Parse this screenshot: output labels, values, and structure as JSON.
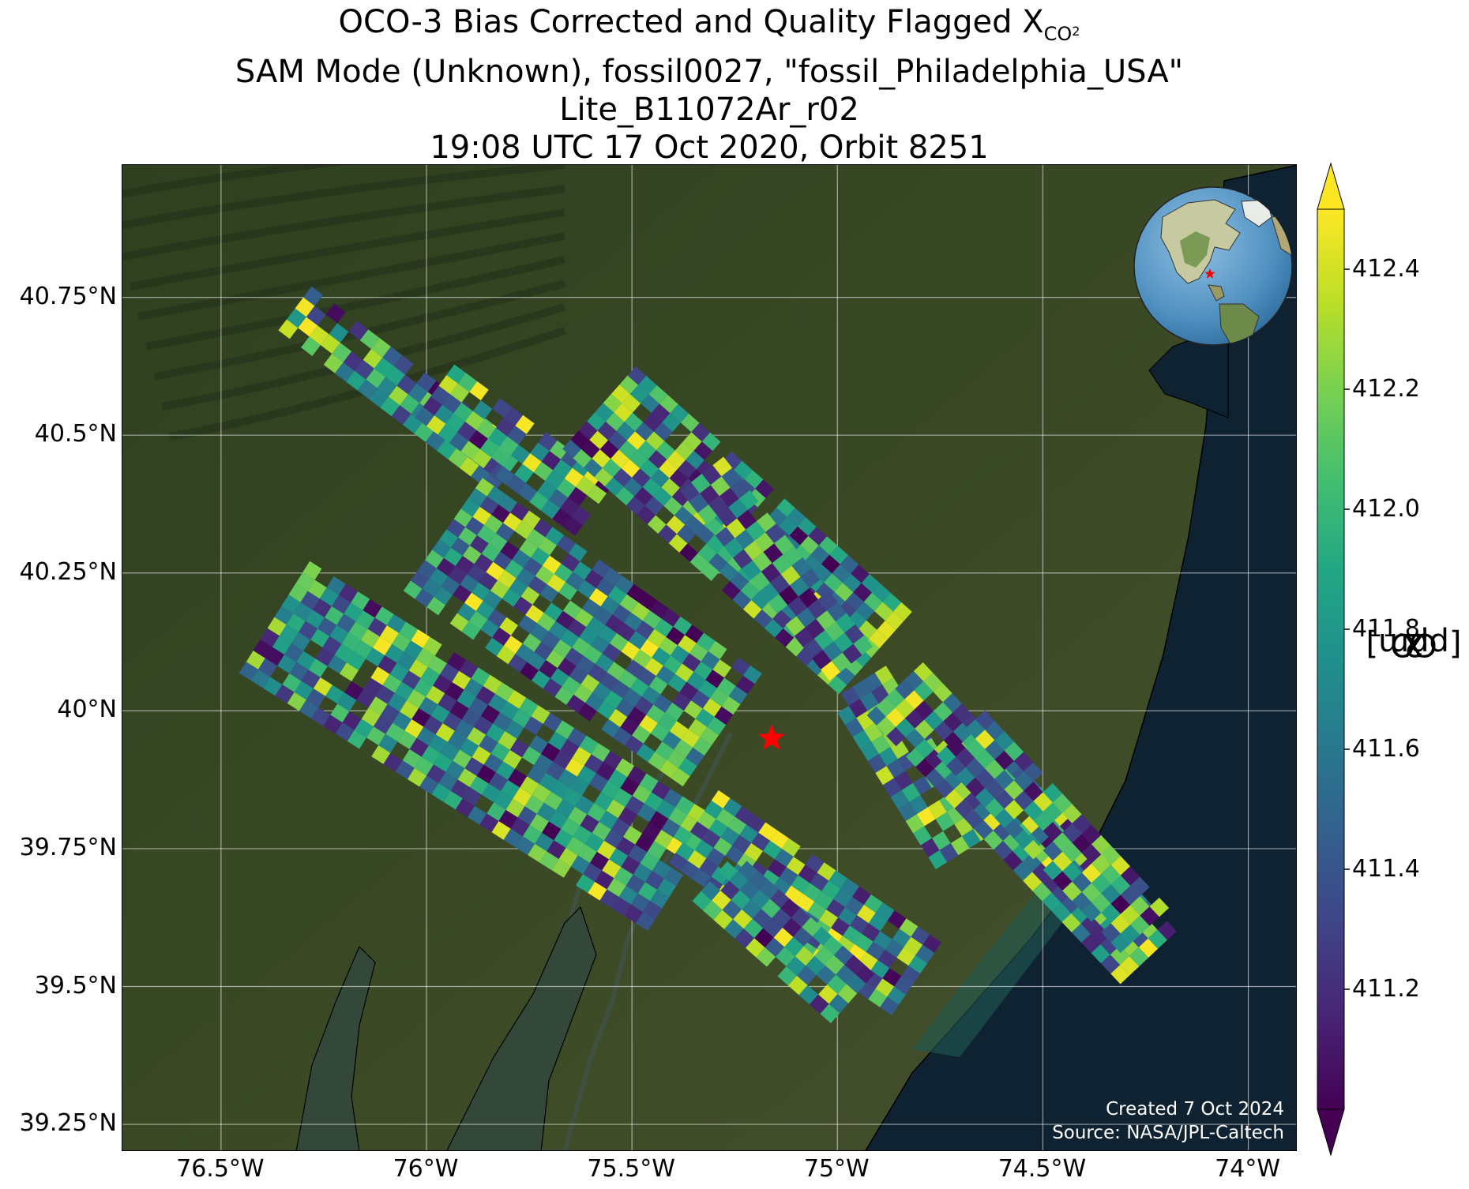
{
  "title": {
    "line1_prefix": "OCO-3 Bias Corrected and Quality Flagged X",
    "line1_sub": "CO",
    "line1_subsub": "2",
    "line2": "SAM Mode (Unknown), fossil0027, \"fossil_Philadelphia_USA\"",
    "line3": "Lite_B11072Ar_r02",
    "line4": "19:08 UTC 17 Oct 2020, Orbit 8251"
  },
  "map": {
    "lon_range": [
      -76.74,
      -73.88
    ],
    "lat_range": [
      39.2,
      40.99
    ],
    "target_marker": {
      "lon": -75.16,
      "lat": 39.95,
      "color": "#ff0000"
    },
    "lon_ticks": [
      {
        "value": -76.5,
        "label": "76.5°W"
      },
      {
        "value": -76.0,
        "label": "76°W"
      },
      {
        "value": -75.5,
        "label": "75.5°W"
      },
      {
        "value": -75.0,
        "label": "75°W"
      },
      {
        "value": -74.5,
        "label": "74.5°W"
      },
      {
        "value": -74.0,
        "label": "74°W"
      }
    ],
    "lat_ticks": [
      {
        "value": 40.75,
        "label": "40.75°N"
      },
      {
        "value": 40.5,
        "label": "40.5°N"
      },
      {
        "value": 40.25,
        "label": "40.25°N"
      },
      {
        "value": 40.0,
        "label": "40°N"
      },
      {
        "value": 39.75,
        "label": "39.75°N"
      },
      {
        "value": 39.5,
        "label": "39.5°N"
      },
      {
        "value": 39.25,
        "label": "39.25°N"
      }
    ],
    "gridlines": true,
    "basemap": "satellite imagery",
    "ocean_color": "#0f2232",
    "land_color": "#3b4a25",
    "swaths": [
      {
        "start": [
          -76.32,
          40.73
        ],
        "end": [
          -75.79,
          40.43
        ],
        "width": 0.1
      },
      {
        "start": [
          -75.98,
          40.58
        ],
        "end": [
          -75.58,
          40.36
        ],
        "width": 0.12
      },
      {
        "start": [
          -75.58,
          40.55
        ],
        "end": [
          -74.9,
          40.1
        ],
        "width": 0.2
      },
      {
        "start": [
          -75.33,
          40.43
        ],
        "end": [
          -74.95,
          40.07
        ],
        "width": 0.1
      },
      {
        "start": [
          -75.96,
          40.32
        ],
        "end": [
          -75.27,
          39.96
        ],
        "width": 0.25
      },
      {
        "start": [
          -76.37,
          40.17
        ],
        "end": [
          -75.37,
          39.7
        ],
        "width": 0.24
      },
      {
        "start": [
          -75.35,
          39.79
        ],
        "end": [
          -74.78,
          39.5
        ],
        "width": 0.16
      },
      {
        "start": [
          -75.3,
          39.7
        ],
        "end": [
          -74.95,
          39.47
        ],
        "width": 0.12
      },
      {
        "start": [
          -74.95,
          40.05
        ],
        "end": [
          -74.68,
          39.73
        ],
        "width": 0.12
      },
      {
        "start": [
          -74.86,
          40.04
        ],
        "end": [
          -74.24,
          39.55
        ],
        "width": 0.14
      },
      {
        "start": [
          -74.7,
          39.96
        ],
        "end": [
          -74.25,
          39.6
        ],
        "width": 0.12
      }
    ]
  },
  "inset": {
    "icon": "globe-icon",
    "marker_color": "#ff0000"
  },
  "credits": {
    "line1": "Created 7 Oct 2024",
    "line2": "Source: NASA/JPL-Caltech"
  },
  "colorbar": {
    "colormap": "viridis",
    "vmin": 411.0,
    "vmax": 412.5,
    "extend": "both",
    "ticks": [
      "412.4",
      "412.2",
      "412.0",
      "411.8",
      "411.6",
      "411.4",
      "411.2"
    ],
    "label_prefix": "X",
    "label_sub": "CO",
    "label_subsub": "2",
    "label_suffix": " [ppm]"
  }
}
